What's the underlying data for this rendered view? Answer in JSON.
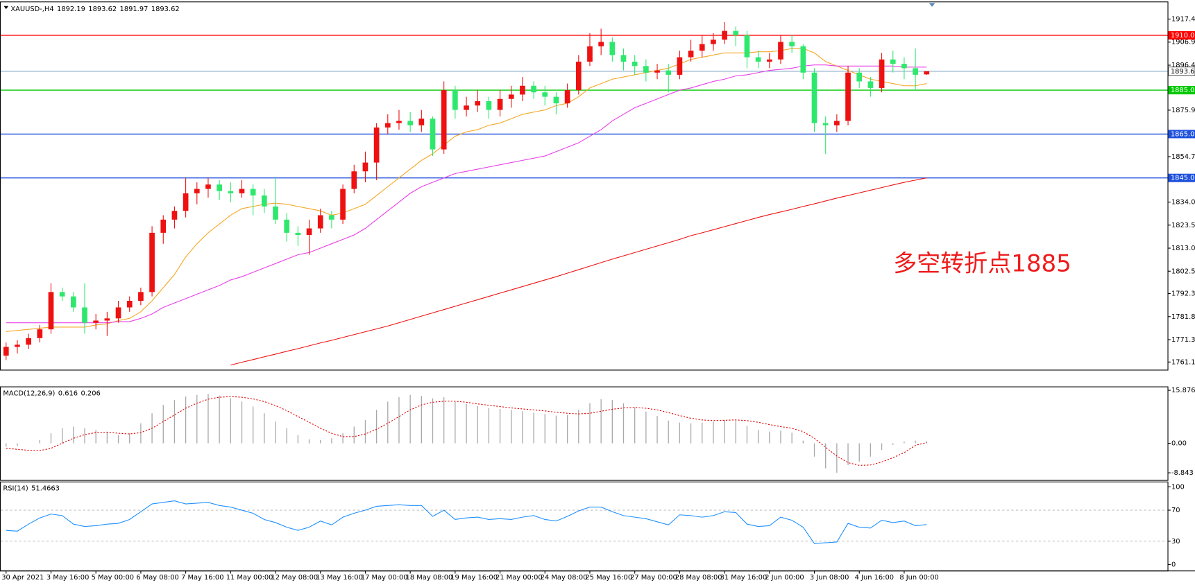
{
  "chart_data": [
    {
      "type": "candlestick",
      "title": "XAUUSD-,H4",
      "categories": [
        "30 Apr 2021",
        null,
        null,
        null,
        "3 May 16:00",
        null,
        null,
        null,
        "5 May 00:00",
        null,
        null,
        null,
        "6 May 08:00",
        null,
        null,
        null,
        "7 May 16:00",
        null,
        null,
        null,
        "11 May 00:00",
        null,
        null,
        null,
        "12 May 08:00",
        null,
        null,
        null,
        "13 May 16:00",
        null,
        null,
        null,
        "17 May 00:00",
        null,
        null,
        null,
        "18 May 08:00",
        null,
        null,
        null,
        "19 May 16:00",
        null,
        null,
        null,
        "21 May 00:00",
        null,
        null,
        null,
        "24 May 08:00",
        null,
        null,
        null,
        "25 May 16:00",
        null,
        null,
        null,
        "27 May 00:00",
        null,
        null,
        null,
        "28 May 08:00",
        null,
        null,
        null,
        "31 May 16:00",
        null,
        null,
        null,
        "2 Jun 00:00",
        null,
        null,
        null,
        "3 Jun 08:00",
        null,
        null,
        null,
        "4 Jun 16:00",
        null,
        null,
        null,
        "8 Jun 00:00",
        null,
        null
      ],
      "open": [
        1764,
        1768,
        1769,
        1772,
        1776,
        1793,
        1791,
        1786,
        1779,
        1780,
        1781,
        1786,
        1789,
        1793,
        1820,
        1826,
        1830,
        1838,
        1840,
        1842,
        1839,
        1838,
        1840,
        1837,
        1832,
        1826,
        1820,
        1819,
        1822,
        1828,
        1826,
        1840,
        1848,
        1852,
        1868,
        1870,
        1871,
        1869,
        1872,
        1858,
        1885,
        1876,
        1878,
        1880,
        1876,
        1881,
        1883,
        1887,
        1884,
        1882,
        1879,
        1885,
        1898,
        1905,
        1907,
        1901,
        1898,
        1896,
        1893,
        1894,
        1892,
        1900,
        1903,
        1906,
        1908,
        1912,
        1910,
        1900,
        1898,
        1899,
        1907,
        1905,
        1893,
        1870,
        1869,
        1871,
        1893,
        1889,
        1886,
        1899,
        1897,
        1895,
        1892.19
      ],
      "high": [
        1770,
        1771,
        1774,
        1778,
        1797,
        1795,
        1793,
        1797,
        1783,
        1784,
        1789,
        1791,
        1795,
        1823,
        1828,
        1832,
        1845,
        1843,
        1845,
        1844,
        1843,
        1844,
        1842,
        1840,
        1845,
        1829,
        1823,
        1826,
        1831,
        1830,
        1842,
        1851,
        1857,
        1870,
        1874,
        1876,
        1875,
        1876,
        1873,
        1889,
        1887,
        1882,
        1885,
        1882,
        1885,
        1887,
        1891,
        1889,
        1887,
        1884,
        1888,
        1901,
        1911,
        1913,
        1909,
        1904,
        1901,
        1899,
        1897,
        1897,
        1903,
        1908,
        1910,
        1911,
        1916,
        1914,
        1912,
        1903,
        1902,
        1910,
        1910,
        1906,
        1895,
        1873,
        1874,
        1896,
        1895,
        1891,
        1902,
        1903,
        1900,
        1904,
        1893.62
      ],
      "low": [
        1762,
        1765,
        1767,
        1770,
        1774,
        1789,
        1784,
        1774,
        1776,
        1773,
        1779,
        1784,
        1787,
        1791,
        1815,
        1822,
        1827,
        1833,
        1836,
        1835,
        1834,
        1836,
        1828,
        1829,
        1824,
        1816,
        1814,
        1810,
        1820,
        1822,
        1824,
        1838,
        1843,
        1844,
        1865,
        1867,
        1866,
        1866,
        1855,
        1856,
        1872,
        1873,
        1875,
        1872,
        1873,
        1877,
        1880,
        1881,
        1878,
        1874,
        1877,
        1883,
        1896,
        1901,
        1898,
        1894,
        1892,
        1889,
        1890,
        1884,
        1890,
        1898,
        1900,
        1903,
        1906,
        1905,
        1895,
        1895,
        1895,
        1897,
        1902,
        1890,
        1866,
        1856,
        1866,
        1869,
        1886,
        1882,
        1884,
        1893,
        1890,
        1885,
        1891.97
      ],
      "close": [
        1768,
        1769,
        1772,
        1776,
        1793,
        1791,
        1786,
        1779,
        1780,
        1781,
        1786,
        1789,
        1793,
        1820,
        1826,
        1830,
        1838,
        1840,
        1842,
        1839,
        1838,
        1840,
        1837,
        1832,
        1826,
        1820,
        1819,
        1822,
        1828,
        1826,
        1840,
        1848,
        1852,
        1868,
        1870,
        1871,
        1869,
        1872,
        1858,
        1885,
        1876,
        1878,
        1880,
        1876,
        1881,
        1883,
        1887,
        1884,
        1882,
        1879,
        1885,
        1898,
        1905,
        1907,
        1901,
        1898,
        1896,
        1893,
        1894,
        1892,
        1900,
        1903,
        1906,
        1908,
        1912,
        1910,
        1900,
        1898,
        1899,
        1907,
        1905,
        1893,
        1870,
        1869,
        1871,
        1893,
        1889,
        1886,
        1899,
        1897,
        1895,
        1892,
        1893.62
      ],
      "up_color": "#ee1111",
      "down_color": "#2ee86d",
      "series": [
        {
          "color": "#f5a623",
          "values": [
            1775,
            1775.5,
            1776,
            1776.5,
            1777,
            1777,
            1777,
            1777,
            1778,
            1778.5,
            1780,
            1781,
            1784,
            1789,
            1795,
            1801,
            1809,
            1815,
            1820,
            1824,
            1828,
            1831,
            1832,
            1833,
            1833.5,
            1833,
            1832,
            1831,
            1830,
            1828,
            1829,
            1831,
            1833,
            1837,
            1841,
            1845,
            1849,
            1853,
            1856,
            1860,
            1864,
            1866,
            1867,
            1869,
            1870,
            1872,
            1874,
            1875,
            1876,
            1878,
            1879,
            1882,
            1886,
            1888,
            1890,
            1891,
            1892,
            1893,
            1894,
            1895,
            1897,
            1899,
            1900,
            1901,
            1902,
            1902,
            1902,
            1902.5,
            1902.5,
            1903,
            1904,
            1904,
            1902,
            1898,
            1896,
            1894,
            1892,
            1890,
            1889,
            1888,
            1887,
            1887,
            1888
          ]
        },
        {
          "color": "#e83ee8",
          "values": [
            1779,
            1779,
            1779,
            1779,
            1779,
            1779,
            1779,
            1779,
            1779,
            1779,
            1779.5,
            1779.5,
            1781,
            1783,
            1786,
            1788,
            1790,
            1792,
            1794,
            1796,
            1798.5,
            1800,
            1802,
            1804,
            1806,
            1808,
            1810,
            1811,
            1813,
            1815,
            1817,
            1819,
            1822,
            1826,
            1830,
            1834,
            1838,
            1841,
            1843,
            1845,
            1847,
            1848,
            1849,
            1850,
            1851,
            1852,
            1853,
            1854,
            1855,
            1857,
            1859,
            1861,
            1864,
            1867,
            1871,
            1874,
            1877,
            1879,
            1881,
            1883,
            1885,
            1886,
            1887.5,
            1889,
            1890,
            1891.5,
            1892,
            1893,
            1894,
            1894.5,
            1895,
            1896,
            1896.5,
            1896.5,
            1896,
            1896,
            1896,
            1896,
            1896,
            1896,
            1895.5,
            1895.5,
            1895.5
          ]
        },
        {
          "color": "#ee1111",
          "values": [
            null,
            null,
            null,
            null,
            null,
            null,
            null,
            null,
            null,
            null,
            null,
            null,
            null,
            null,
            null,
            null,
            null,
            null,
            null,
            null,
            1759.7,
            1761,
            1762.2,
            1763.5,
            1764.7,
            1766,
            1767.2,
            1768.5,
            1769.8,
            1771,
            1772.3,
            1773.6,
            1774.9,
            1776.2,
            1777.5,
            1779,
            1780.5,
            1782,
            1783.5,
            1785,
            1786.5,
            1788,
            1789.5,
            1791,
            1792.5,
            1794,
            1795.5,
            1797,
            1798.5,
            1800,
            1801.6,
            1803.2,
            1804.8,
            1806.4,
            1808,
            1809.5,
            1811,
            1812.5,
            1814,
            1815.5,
            1817,
            1818.7,
            1820,
            1821.4,
            1822.8,
            1824.2,
            1825.6,
            1827,
            1828.3,
            1829.5,
            1830.7,
            1832,
            1833.2,
            1834.5,
            1835.8,
            1837,
            1838.2,
            1839.4,
            1840.6,
            1841.8,
            1843,
            1844,
            1845
          ]
        }
      ],
      "levels": [
        {
          "value": 1910,
          "label": "1910.00",
          "color": "#ff0000"
        },
        {
          "value": 1885,
          "label": "1885.00",
          "color": "#00c800"
        },
        {
          "value": 1865,
          "label": "1865.00",
          "color": "#1e50dc"
        },
        {
          "value": 1845,
          "label": "1845.00",
          "color": "#1e50dc"
        }
      ],
      "last_price": {
        "value": 1893.62,
        "color": "#5b8bb5"
      },
      "annotation": {
        "text": "多空转折点1885",
        "color": "#ee1c1c"
      },
      "ylim": [
        1757.6,
        1925.4
      ],
      "yticks": [
        {
          "value": 1917.4,
          "label": "1917.40"
        },
        {
          "value": 1906.9,
          "label": "1906.90"
        },
        {
          "value": 1896.4,
          "label": "1896.40"
        },
        {
          "value": 1875.9,
          "label": "1875.90"
        },
        {
          "value": 1854.7,
          "label": "1854.70"
        },
        {
          "value": 1834,
          "label": "1834.00"
        },
        {
          "value": 1823.5,
          "label": "1823.50"
        },
        {
          "value": 1813,
          "label": "1813.00"
        },
        {
          "value": 1802.5,
          "label": "1802.50"
        },
        {
          "value": 1792.3,
          "label": "1792.30"
        },
        {
          "value": 1781.8,
          "label": "1781.80"
        },
        {
          "value": 1771.3,
          "label": "1771.30"
        },
        {
          "value": 1761.1,
          "label": "1761.10"
        }
      ]
    },
    {
      "type": "macd",
      "title": "MACD(12,26,9)",
      "series": [
        {
          "color": "#a8a8a8",
          "style": "histogram",
          "values": [
            -1,
            -0.8,
            0,
            1,
            3,
            4.5,
            5,
            4.5,
            4,
            3.5,
            2.5,
            3,
            6,
            9,
            11.5,
            13,
            14,
            14.5,
            14.8,
            14.3,
            13.5,
            12.5,
            11,
            9,
            6.5,
            4.5,
            2.5,
            1.2,
            1,
            1.5,
            3,
            5,
            7,
            10,
            12.5,
            13.8,
            14.5,
            14.2,
            13.5,
            13.8,
            12.5,
            11.8,
            11.2,
            10.5,
            10.3,
            10,
            9.6,
            9.2,
            8.8,
            8.3,
            8.5,
            10,
            12,
            13.2,
            13,
            12,
            10.8,
            9.5,
            8.2,
            6.8,
            6.2,
            6,
            6.2,
            6.5,
            7,
            6.8,
            5.2,
            4,
            3.5,
            3.8,
            3.2,
            0.8,
            -4,
            -7.5,
            -8.8,
            -6.5,
            -5.5,
            -4,
            -2,
            -0.5,
            0.5,
            0.8,
            0.616
          ]
        },
        {
          "color": "#e00000",
          "style": "dotted",
          "values": [
            -1.5,
            -1.8,
            -2.1,
            -2.2,
            -1.5,
            0,
            1.5,
            2.6,
            3.2,
            3.3,
            3,
            2.8,
            3.2,
            4.5,
            6.5,
            8.5,
            10.5,
            12,
            13.2,
            13.8,
            14,
            13.8,
            13.3,
            12.5,
            11.3,
            9.8,
            8,
            6.3,
            4.5,
            3,
            2,
            2,
            2.8,
            4.2,
            6,
            8,
            10,
            11.5,
            12.3,
            12.6,
            12.6,
            12.3,
            11.8,
            11.4,
            11,
            10.6,
            10.3,
            10,
            9.7,
            9.3,
            9,
            8.8,
            9,
            9.6,
            10.2,
            10.6,
            10.7,
            10.5,
            10,
            9.2,
            8.3,
            7.5,
            7,
            6.8,
            6.9,
            7,
            6.8,
            6.3,
            5.6,
            5,
            4.5,
            3.5,
            1.5,
            -1.2,
            -3.8,
            -5.8,
            -6.6,
            -6.5,
            -5.6,
            -4.3,
            -2.8,
            -0.6,
            0.206
          ]
        }
      ],
      "ylim": [
        -11,
        16.8
      ],
      "yticks": [
        15.876,
        {
          "value": 0,
          "label": "0.00"
        },
        -8.843
      ]
    },
    {
      "type": "line",
      "title": "RSI(14)",
      "series": [
        {
          "color": "#1e90ff",
          "values": [
            44,
            43,
            52,
            60,
            65,
            63,
            52,
            49,
            50,
            52,
            53,
            58,
            68,
            78,
            80,
            82,
            78,
            79,
            80,
            76,
            74,
            70,
            66,
            58,
            54,
            48,
            44,
            48,
            56,
            51,
            61,
            66,
            70,
            75,
            76,
            77,
            76,
            76,
            62,
            70,
            58,
            60,
            61,
            58,
            59,
            58,
            61,
            63,
            58,
            56,
            62,
            69,
            74,
            74,
            68,
            63,
            61,
            59,
            55,
            51,
            64,
            63,
            61,
            63,
            68,
            67,
            52,
            49,
            50,
            61,
            57,
            48,
            27,
            28,
            29,
            53,
            48,
            47,
            57,
            54,
            56,
            50,
            51.4663
          ]
        }
      ],
      "ylim": [
        -7.8,
        105.9
      ],
      "yticks": [
        100,
        70,
        30,
        0
      ]
    }
  ]
}
